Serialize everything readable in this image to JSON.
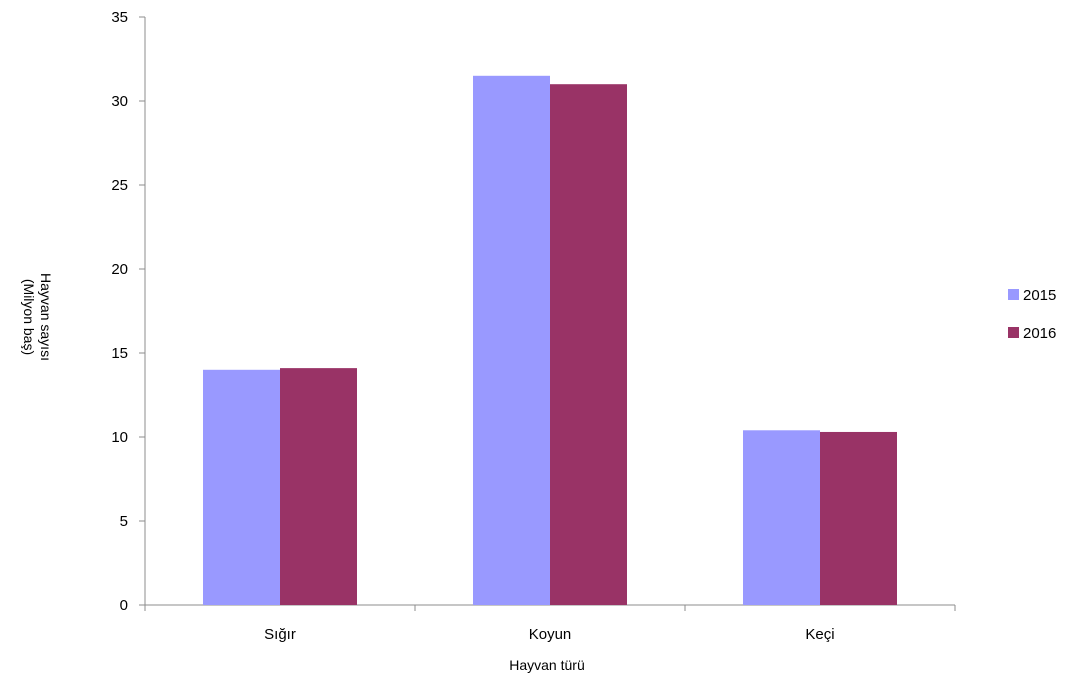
{
  "chart_data": {
    "type": "bar",
    "title": "",
    "xlabel": "Hayvan türü",
    "ylabel_lines": [
      "Hayvan sayısı",
      "(Milyon baş)"
    ],
    "categories": [
      "Sığır",
      "Koyun",
      "Keçi"
    ],
    "series": [
      {
        "name": "2015",
        "color": "#9999ff",
        "values": [
          14.0,
          31.5,
          10.4
        ]
      },
      {
        "name": "2016",
        "color": "#993366",
        "values": [
          14.1,
          31.0,
          10.3
        ]
      }
    ],
    "ylim": [
      0,
      35
    ],
    "yticks": [
      0,
      5,
      10,
      15,
      20,
      25,
      30,
      35
    ],
    "grid": false,
    "legend_position": "right"
  }
}
